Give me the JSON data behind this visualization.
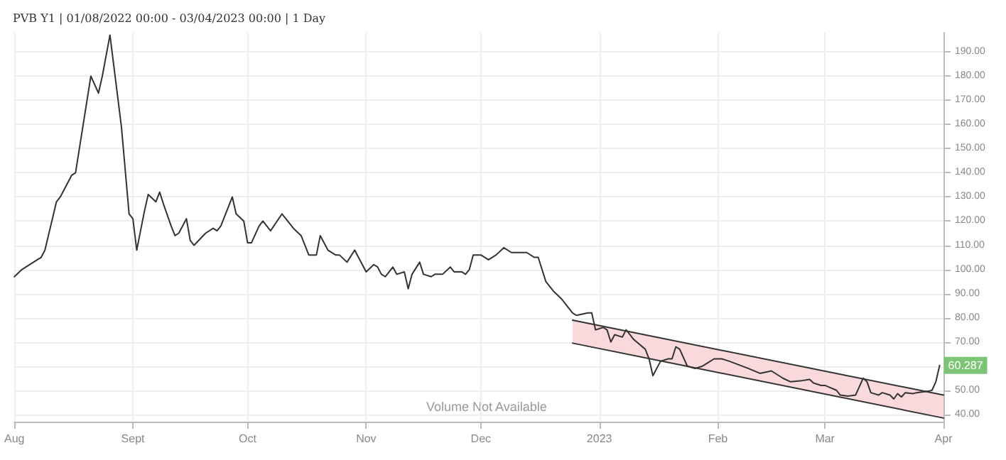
{
  "chart_data": {
    "type": "line",
    "title": "PVB Y1 | 01/08/2022 00:00 - 03/04/2023 00:00 | 1 Day",
    "xlim": [
      "2022-08-01",
      "2023-04-01"
    ],
    "xticks": [
      {
        "value": "2022-08-01",
        "label": "Aug"
      },
      {
        "value": "2022-09-01",
        "label": "Sept"
      },
      {
        "value": "2022-10-01",
        "label": "Oct"
      },
      {
        "value": "2022-11-01",
        "label": "Nov"
      },
      {
        "value": "2022-12-01",
        "label": "Dec"
      },
      {
        "value": "2023-01-01",
        "label": "2023"
      },
      {
        "value": "2023-02-01",
        "label": "Feb"
      },
      {
        "value": "2023-03-01",
        "label": "Mar"
      },
      {
        "value": "2023-04-01",
        "label": "Apr"
      }
    ],
    "ylim": [
      37,
      198
    ],
    "yticks": [
      {
        "value": 40,
        "label": "40.00"
      },
      {
        "value": 50,
        "label": "50.00"
      },
      {
        "value": 60,
        "label": null
      },
      {
        "value": 70,
        "label": "70.00"
      },
      {
        "value": 80,
        "label": "80.00"
      },
      {
        "value": 90,
        "label": "90.00"
      },
      {
        "value": 100,
        "label": "100.00"
      },
      {
        "value": 110,
        "label": "110.00"
      },
      {
        "value": 120,
        "label": "120.00"
      },
      {
        "value": 130,
        "label": "130.00"
      },
      {
        "value": 140,
        "label": "140.00"
      },
      {
        "value": 150,
        "label": "150.00"
      },
      {
        "value": 160,
        "label": "160.00"
      },
      {
        "value": 170,
        "label": "170.00"
      },
      {
        "value": 180,
        "label": "180.00"
      },
      {
        "value": 190,
        "label": "190.00"
      }
    ],
    "grid": true,
    "marker": "none",
    "series": [
      {
        "color": "#333333",
        "x": [
          "2022-08-01",
          "2022-08-03",
          "2022-08-07",
          "2022-08-08",
          "2022-08-09",
          "2022-08-12",
          "2022-08-13",
          "2022-08-16",
          "2022-08-17",
          "2022-08-21",
          "2022-08-23",
          "2022-08-24",
          "2022-08-26",
          "2022-08-29",
          "2022-08-31",
          "2022-09-01",
          "2022-09-02",
          "2022-09-04",
          "2022-09-05",
          "2022-09-07",
          "2022-09-08",
          "2022-09-09",
          "2022-09-11",
          "2022-09-12",
          "2022-09-13",
          "2022-09-15",
          "2022-09-16",
          "2022-09-17",
          "2022-09-20",
          "2022-09-22",
          "2022-09-23",
          "2022-09-24",
          "2022-09-27",
          "2022-09-28",
          "2022-09-30",
          "2022-10-01",
          "2022-10-02",
          "2022-10-04",
          "2022-10-05",
          "2022-10-07",
          "2022-10-10",
          "2022-10-11",
          "2022-10-13",
          "2022-10-15",
          "2022-10-17",
          "2022-10-19",
          "2022-10-20",
          "2022-10-22",
          "2022-10-24",
          "2022-10-25",
          "2022-10-27",
          "2022-10-29",
          "2022-10-31",
          "2022-11-01",
          "2022-11-03",
          "2022-11-04",
          "2022-11-05",
          "2022-11-06",
          "2022-11-08",
          "2022-11-09",
          "2022-11-11",
          "2022-11-12",
          "2022-11-13",
          "2022-11-15",
          "2022-11-16",
          "2022-11-18",
          "2022-11-19",
          "2022-11-21",
          "2022-11-23",
          "2022-11-24",
          "2022-11-26",
          "2022-11-27",
          "2022-11-28",
          "2022-11-29",
          "2022-12-01",
          "2022-12-03",
          "2022-12-05",
          "2022-12-07",
          "2022-12-09",
          "2022-12-11",
          "2022-12-13",
          "2022-12-15",
          "2022-12-16",
          "2022-12-18",
          "2022-12-20",
          "2022-12-22",
          "2022-12-24",
          "2022-12-25",
          "2022-12-26",
          "2022-12-29",
          "2022-12-30",
          "2022-12-31",
          "2023-01-02",
          "2023-01-03",
          "2023-01-04",
          "2023-01-05",
          "2023-01-07",
          "2023-01-08",
          "2023-01-09",
          "2023-01-10",
          "2023-01-13",
          "2023-01-14",
          "2023-01-15",
          "2023-01-17",
          "2023-01-19",
          "2023-01-20",
          "2023-01-21",
          "2023-01-22",
          "2023-01-24",
          "2023-01-26",
          "2023-01-28",
          "2023-01-31",
          "2023-02-02",
          "2023-02-04",
          "2023-02-09",
          "2023-02-12",
          "2023-02-15",
          "2023-02-18",
          "2023-02-20",
          "2023-02-23",
          "2023-02-25",
          "2023-02-26",
          "2023-02-28",
          "2023-03-01",
          "2023-03-04",
          "2023-03-05",
          "2023-03-07",
          "2023-03-09",
          "2023-03-10",
          "2023-03-11",
          "2023-03-12",
          "2023-03-13",
          "2023-03-15",
          "2023-03-16",
          "2023-03-18",
          "2023-03-19",
          "2023-03-20",
          "2023-03-21",
          "2023-03-22",
          "2023-03-24",
          "2023-03-25",
          "2023-03-28",
          "2023-03-29",
          "2023-03-30",
          "2023-03-31"
        ],
        "values": [
          97,
          100,
          104,
          105,
          108,
          128,
          130,
          139,
          140,
          180,
          173,
          180,
          197,
          159,
          123,
          121,
          108,
          124,
          131,
          128,
          132,
          127,
          118,
          114,
          115,
          121,
          112,
          110,
          115,
          117,
          116,
          118,
          130,
          123,
          120,
          111,
          111,
          118,
          120,
          116,
          123,
          121,
          117,
          114,
          106,
          106,
          114,
          108,
          106,
          106,
          103,
          108,
          102,
          99,
          102,
          101,
          98,
          97,
          101,
          98,
          99,
          92,
          98,
          103,
          98,
          97,
          98,
          98,
          101,
          99,
          99,
          98,
          100,
          106,
          106,
          104,
          106,
          109,
          107,
          107,
          107,
          105,
          105,
          95,
          91,
          88,
          84,
          82,
          81,
          82,
          82,
          75,
          76,
          75,
          70,
          73,
          72,
          75,
          73,
          71,
          67,
          63,
          56,
          62,
          63,
          63,
          68,
          67,
          60,
          59,
          60,
          63,
          63,
          62,
          59,
          57,
          58,
          55,
          53.5,
          54,
          54.5,
          53,
          52,
          52,
          50,
          48,
          47.6,
          48,
          51.5,
          55,
          53.5,
          49,
          48,
          49,
          48,
          46.4,
          48.6,
          47.2,
          49,
          48.6,
          49,
          49.6,
          50,
          53.5,
          60.287
        ]
      },
      {
        "color": "#333333",
        "x": [
          "2022-12-25",
          "2023-04-01"
        ],
        "values": [
          79,
          48
        ]
      },
      {
        "color": "#333333",
        "x": [
          "2022-12-25",
          "2023-04-01"
        ],
        "values": [
          69.5,
          38.5
        ],
        "lower": [
          69.5,
          38.5
        ],
        "upper": [
          79,
          48
        ]
      }
    ],
    "annotations": [
      "Volume Not Available",
      {
        "text": "60.287",
        "x": "2023-03-31",
        "y": 60.287
      }
    ]
  }
}
